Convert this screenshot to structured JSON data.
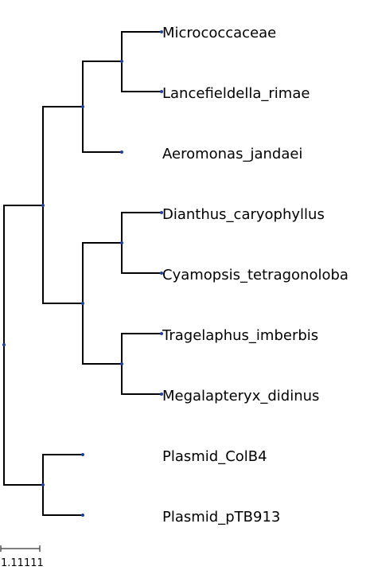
{
  "tree": {
    "leaves": [
      "Micrococcaceae",
      "Lancefieldella_rimae",
      "Aeromonas_jandaei",
      "Dianthus_caryophyllus",
      "Cyamopsis_tetragonoloba",
      "Tragelaphus_imberbis",
      "Megalapteryx_didinus",
      "Plasmid_ColB4",
      "Plasmid_pTB913"
    ],
    "colors": {
      "branch": "#000000",
      "node": "#1f3f9f",
      "scale": "#555555"
    }
  },
  "scale_bar": {
    "label": "1.11111"
  }
}
